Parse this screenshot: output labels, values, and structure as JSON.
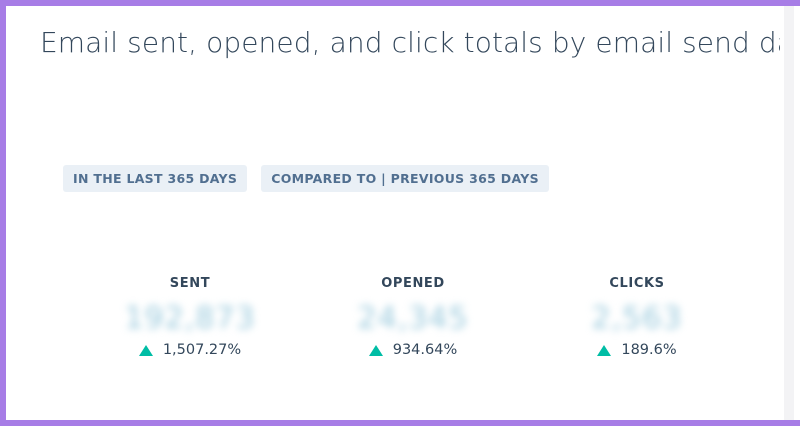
{
  "header": {
    "title": "Email sent, opened, and click totals by email send date"
  },
  "filters": [
    {
      "label": "IN THE LAST 365 DAYS"
    },
    {
      "label": "COMPARED TO | PREVIOUS 365 DAYS"
    }
  ],
  "metrics": [
    {
      "label": "SENT",
      "value": "192,873",
      "change": "1,507.27%",
      "trend": "up"
    },
    {
      "label": "OPENED",
      "value": "24,345",
      "change": "934.64%",
      "trend": "up"
    },
    {
      "label": "CLICKS",
      "value": "2,563",
      "change": "189.6%",
      "trend": "up"
    }
  ],
  "colors": {
    "frame": "#a77de6",
    "title_text": "#33475b",
    "chip_bg": "#eaf0f6",
    "chip_text": "#516f90",
    "trend_up": "#00bda5",
    "value_blurred": "#99c9dc"
  },
  "icons": {
    "trend_up": "triangle-up-icon"
  }
}
